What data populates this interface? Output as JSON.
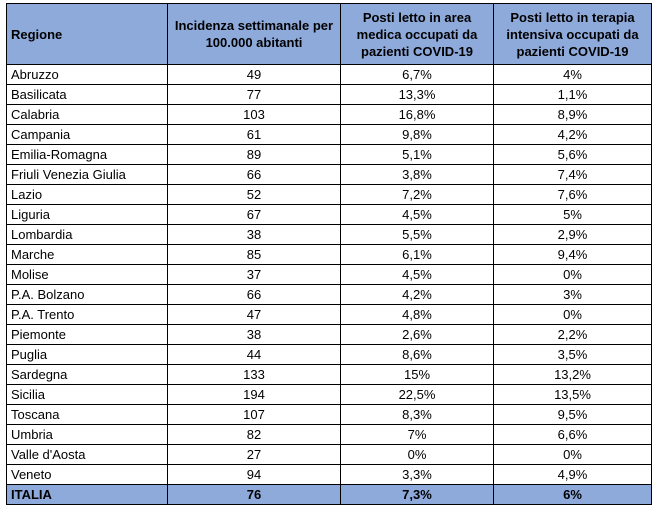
{
  "table": {
    "headers": [
      "Regione",
      "Incidenza settimanale per 100.000 abitanti",
      "Posti letto in area medica occupati da pazienti COVID-19",
      "Posti letto in terapia intensiva occupati da pazienti COVID-19"
    ],
    "rows": [
      [
        "Abruzzo",
        "49",
        "6,7%",
        "4%"
      ],
      [
        "Basilicata",
        "77",
        "13,3%",
        "1,1%"
      ],
      [
        "Calabria",
        "103",
        "16,8%",
        "8,9%"
      ],
      [
        "Campania",
        "61",
        "9,8%",
        "4,2%"
      ],
      [
        "Emilia-Romagna",
        "89",
        "5,1%",
        "5,6%"
      ],
      [
        "Friuli Venezia Giulia",
        "66",
        "3,8%",
        "7,4%"
      ],
      [
        "Lazio",
        "52",
        "7,2%",
        "7,6%"
      ],
      [
        "Liguria",
        "67",
        "4,5%",
        "5%"
      ],
      [
        "Lombardia",
        "38",
        "5,5%",
        "2,9%"
      ],
      [
        "Marche",
        "85",
        "6,1%",
        "9,4%"
      ],
      [
        "Molise",
        "37",
        "4,5%",
        "0%"
      ],
      [
        "P.A. Bolzano",
        "66",
        "4,2%",
        "3%"
      ],
      [
        "P.A. Trento",
        "47",
        "4,8%",
        "0%"
      ],
      [
        "Piemonte",
        "38",
        "2,6%",
        "2,2%"
      ],
      [
        "Puglia",
        "44",
        "8,6%",
        "3,5%"
      ],
      [
        "Sardegna",
        "133",
        "15%",
        "13,2%"
      ],
      [
        "Sicilia",
        "194",
        "22,5%",
        "13,5%"
      ],
      [
        "Toscana",
        "107",
        "8,3%",
        "9,5%"
      ],
      [
        "Umbria",
        "82",
        "7%",
        "6,6%"
      ],
      [
        "Valle d'Aosta",
        "27",
        "0%",
        "0%"
      ],
      [
        "Veneto",
        "94",
        "3,3%",
        "4,9%"
      ]
    ],
    "total": [
      "ITALIA",
      "76",
      "7,3%",
      "6%"
    ]
  },
  "colors": {
    "header_bg": "#8eaadb",
    "border": "#000000"
  }
}
